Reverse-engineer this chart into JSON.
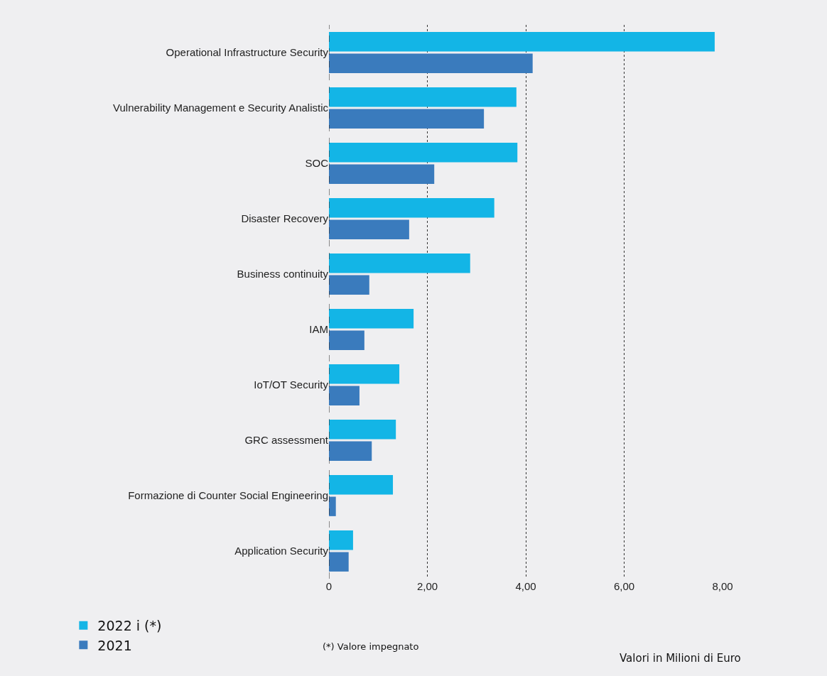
{
  "chart_data": {
    "type": "bar",
    "orientation": "horizontal",
    "categories": [
      "Operational Infrastructure Security",
      "Vulnerability Management e Security Analistic",
      "SOC",
      "Disaster Recovery",
      "Business continuity",
      "IAM",
      "IoT/OT Security",
      "GRC assessment",
      "Formazione di Counter Social Engineering",
      "Application Security"
    ],
    "series": [
      {
        "name": "2022 i (*)",
        "color": "#13b5e6",
        "values": [
          7.84,
          3.81,
          3.83,
          3.36,
          2.87,
          1.72,
          1.43,
          1.36,
          1.3,
          0.49
        ]
      },
      {
        "name": "2021",
        "color": "#3a7bbd",
        "values": [
          4.14,
          3.15,
          2.14,
          1.63,
          0.82,
          0.72,
          0.62,
          0.87,
          0.14,
          0.4
        ]
      }
    ],
    "xlim": [
      0,
      8
    ],
    "xticks": [
      {
        "value": 0,
        "label": "0"
      },
      {
        "value": 2,
        "label": "2,00"
      },
      {
        "value": 4,
        "label": "4,00"
      },
      {
        "value": 6,
        "label": "6,00"
      },
      {
        "value": 8,
        "label": "8,00"
      }
    ],
    "grid": "x",
    "legend": "bottom left",
    "annotations": [
      "(*) Valore impegnato",
      "Valori in Milioni di Euro"
    ]
  }
}
